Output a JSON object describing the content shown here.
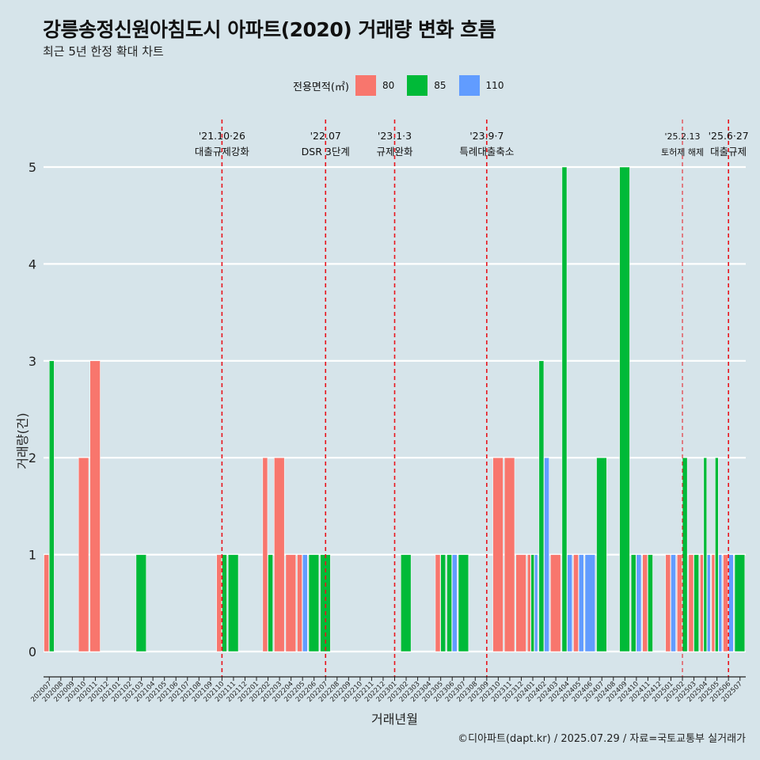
{
  "title": "강릉송정신원아침도시 아파트(2020) 거래량 변화 흐름",
  "subtitle": "최근 5년 한정 확대 차트",
  "caption": "©디아파트(dapt.kr) / 2025.07.29 / 자료=국토교통부 실거래가",
  "legend": {
    "title": "전용면적(㎡)",
    "items": [
      {
        "label": "80",
        "color": "#f8766d"
      },
      {
        "label": "85",
        "color": "#00ba38"
      },
      {
        "label": "110",
        "color": "#619cff"
      }
    ]
  },
  "chart_data": {
    "type": "bar",
    "xlabel": "거래년월",
    "ylabel": "거래량(건)",
    "ylim": [
      0,
      5
    ],
    "yticks": [
      0,
      1,
      2,
      3,
      4,
      5
    ],
    "grid": true,
    "legend_position": "top",
    "categories": [
      "202007",
      "202008",
      "202009",
      "202010",
      "202011",
      "202012",
      "202101",
      "202102",
      "202103",
      "202104",
      "202105",
      "202106",
      "202107",
      "202108",
      "202109",
      "202110",
      "202111",
      "202112",
      "202201",
      "202202",
      "202203",
      "202204",
      "202205",
      "202206",
      "202207",
      "202208",
      "202209",
      "202210",
      "202211",
      "202212",
      "202301",
      "202302",
      "202303",
      "202304",
      "202305",
      "202306",
      "202307",
      "202308",
      "202309",
      "202310",
      "202311",
      "202312",
      "202401",
      "202402",
      "202403",
      "202404",
      "202405",
      "202406",
      "202407",
      "202408",
      "202409",
      "202410",
      "202411",
      "202412",
      "202501",
      "202502",
      "202503",
      "202504",
      "202505",
      "202506",
      "202507"
    ],
    "series": [
      {
        "name": "80",
        "color": "#f8766d",
        "values": [
          1,
          0,
          0,
          2,
          3,
          0,
          0,
          0,
          0,
          0,
          0,
          0,
          0,
          0,
          0,
          1,
          0,
          0,
          0,
          2,
          2,
          1,
          1,
          0,
          0,
          0,
          0,
          0,
          0,
          0,
          0,
          0,
          0,
          0,
          1,
          0,
          0,
          0,
          0,
          2,
          2,
          1,
          1,
          0,
          1,
          0,
          1,
          0,
          0,
          0,
          0,
          0,
          1,
          0,
          1,
          1,
          1,
          1,
          1,
          1,
          0
        ]
      },
      {
        "name": "85",
        "color": "#00ba38",
        "values": [
          3,
          0,
          0,
          0,
          0,
          0,
          0,
          0,
          1,
          0,
          0,
          0,
          0,
          0,
          0,
          1,
          1,
          0,
          0,
          1,
          0,
          0,
          0,
          1,
          1,
          0,
          0,
          0,
          0,
          0,
          0,
          1,
          0,
          0,
          1,
          1,
          1,
          0,
          0,
          0,
          0,
          0,
          1,
          3,
          0,
          5,
          0,
          0,
          2,
          0,
          5,
          1,
          1,
          0,
          0,
          2,
          1,
          2,
          2,
          0,
          1
        ]
      },
      {
        "name": "110",
        "color": "#619cff",
        "values": [
          0,
          0,
          0,
          0,
          0,
          0,
          0,
          0,
          0,
          0,
          0,
          0,
          0,
          0,
          0,
          0,
          0,
          0,
          0,
          0,
          0,
          0,
          1,
          0,
          0,
          0,
          0,
          0,
          0,
          0,
          0,
          0,
          0,
          0,
          0,
          1,
          0,
          0,
          0,
          0,
          0,
          0,
          1,
          2,
          0,
          1,
          1,
          1,
          0,
          0,
          0,
          1,
          0,
          0,
          1,
          0,
          0,
          1,
          1,
          1,
          0
        ]
      }
    ],
    "annotations": [
      {
        "x": "202110",
        "date": "'21.10·26",
        "label": "대출규제강화"
      },
      {
        "x": "202207",
        "date": "'22.07",
        "label": "DSR 3단계"
      },
      {
        "x": "202301",
        "date": "'23.1·3",
        "label": "규제완화"
      },
      {
        "x": "202309",
        "date": "'23.9·7",
        "label": "특례대출축소"
      },
      {
        "x": "202502",
        "date": "'25.2.13",
        "label": "토허제 해제"
      },
      {
        "x": "202506",
        "date": "'25.6·27",
        "label": "대출규제"
      }
    ]
  }
}
